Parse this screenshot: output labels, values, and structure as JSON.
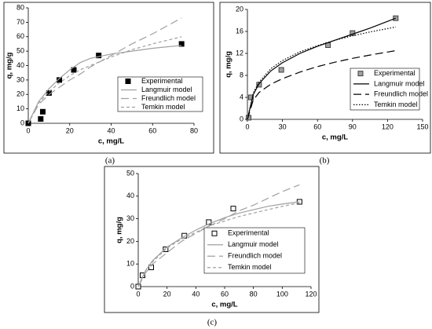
{
  "chart_data": [
    {
      "type": "line",
      "caption": "(a)",
      "x_label": "c, mg/L",
      "y_label": "q, mg/g",
      "xlim": [
        0,
        80
      ],
      "xticks": [
        0,
        20,
        40,
        60,
        80
      ],
      "ylim": [
        0,
        80
      ],
      "yticks": [
        0,
        10,
        20,
        30,
        40,
        50,
        60,
        70,
        80
      ],
      "grid": false,
      "legend": "lower right",
      "series": [
        {
          "name": "Experimental",
          "style": "marker",
          "color": "#000000",
          "marker_fill": "#000000",
          "x": [
            0,
            6,
            7,
            10,
            15,
            22,
            34,
            74
          ],
          "values": [
            0,
            3,
            8,
            21,
            30,
            37,
            47,
            55
          ]
        },
        {
          "name": "Langmuir model",
          "style": "solid",
          "color": "#a0a0a0",
          "x": [
            0,
            5,
            10,
            15,
            20,
            25,
            30,
            40,
            50,
            60,
            74
          ],
          "values": [
            0,
            15,
            24,
            31,
            37,
            42,
            45,
            48,
            50,
            52,
            54
          ]
        },
        {
          "name": "Freundlich model",
          "style": "long-dash",
          "color": "#a0a0a0",
          "x": [
            0,
            5,
            10,
            15,
            20,
            25,
            30,
            40,
            50,
            60,
            74
          ],
          "values": [
            0,
            13,
            20,
            25,
            30,
            34,
            39,
            47,
            55,
            62,
            73
          ]
        },
        {
          "name": "Temkin model",
          "style": "dash",
          "color": "#a0a0a0",
          "x": [
            0,
            5,
            10,
            15,
            20,
            25,
            30,
            40,
            50,
            60,
            74
          ],
          "values": [
            0,
            14,
            22,
            28,
            33,
            37,
            40,
            46,
            51,
            55,
            60
          ]
        }
      ]
    },
    {
      "type": "line",
      "caption": "(b)",
      "x_label": "c, mg/L",
      "y_label": "q, mg/g",
      "xlim": [
        0,
        150
      ],
      "xticks": [
        0,
        30,
        60,
        90,
        120,
        150
      ],
      "ylim": [
        0,
        20
      ],
      "yticks": [
        0,
        4,
        8,
        12,
        16,
        20
      ],
      "grid": false,
      "legend": "lower right",
      "series": [
        {
          "name": "Experimental",
          "style": "marker",
          "color": "#404040",
          "marker_fill": "#a0a0a0",
          "x": [
            1,
            3,
            10,
            29,
            69,
            90,
            127
          ],
          "values": [
            0.3,
            4,
            6.3,
            9,
            13.5,
            15.7,
            18.4
          ]
        },
        {
          "name": "Langmuir model",
          "style": "solid",
          "color": "#000000",
          "x": [
            0,
            5,
            10,
            20,
            30,
            45,
            60,
            75,
            90,
            105,
            127
          ],
          "values": [
            0,
            4.5,
            6.5,
            8.8,
            10.3,
            12,
            13.3,
            14.4,
            15.5,
            16.6,
            18.4
          ]
        },
        {
          "name": "Freundlich model",
          "style": "long-dash",
          "color": "#000000",
          "x": [
            0,
            5,
            10,
            20,
            30,
            45,
            60,
            75,
            90,
            105,
            127
          ],
          "values": [
            0,
            3.5,
            4.9,
            6.4,
            7.4,
            8.6,
            9.6,
            10.4,
            11.1,
            11.7,
            12.5
          ]
        },
        {
          "name": "Temkin model",
          "style": "dot",
          "color": "#000000",
          "x": [
            0,
            5,
            10,
            20,
            30,
            45,
            60,
            75,
            90,
            105,
            127
          ],
          "values": [
            0,
            4.8,
            6.8,
            9.2,
            10.7,
            12.3,
            13.4,
            14.4,
            15.2,
            15.9,
            16.8
          ]
        }
      ]
    },
    {
      "type": "line",
      "caption": "(c)",
      "x_label": "c, mg/L",
      "y_label": "q, mg/g",
      "xlim": [
        0,
        120
      ],
      "xticks": [
        0,
        20,
        40,
        60,
        80,
        100,
        120
      ],
      "ylim": [
        0,
        50
      ],
      "yticks": [
        0,
        10,
        20,
        30,
        40,
        50
      ],
      "grid": false,
      "legend": "lower right",
      "series": [
        {
          "name": "Experimental",
          "style": "marker",
          "color": "#000000",
          "marker_fill": "#ffffff",
          "x": [
            0,
            3,
            9,
            19,
            32,
            49,
            66,
            112
          ],
          "values": [
            0,
            5,
            8.5,
            16.5,
            22.5,
            28.5,
            34.5,
            37.5
          ]
        },
        {
          "name": "Langmuir model",
          "style": "solid",
          "color": "#a0a0a0",
          "x": [
            0,
            5,
            10,
            20,
            30,
            40,
            50,
            60,
            70,
            80,
            90,
            100,
            112
          ],
          "values": [
            0,
            7,
            11.5,
            17.5,
            21.5,
            25,
            28,
            30.5,
            32.5,
            34,
            35.5,
            36.5,
            37.5
          ]
        },
        {
          "name": "Freundlich model",
          "style": "long-dash",
          "color": "#a0a0a0",
          "x": [
            0,
            5,
            10,
            20,
            30,
            40,
            50,
            60,
            70,
            80,
            90,
            100,
            112
          ],
          "values": [
            0,
            6,
            10,
            15,
            20,
            23.5,
            27,
            30,
            33.5,
            36,
            39,
            42,
            45
          ]
        },
        {
          "name": "Temkin model",
          "style": "dash",
          "color": "#a0a0a0",
          "x": [
            0,
            5,
            10,
            20,
            30,
            40,
            50,
            60,
            70,
            80,
            90,
            100,
            112
          ],
          "values": [
            0,
            7,
            11,
            17,
            21,
            24,
            27,
            29,
            31,
            32.5,
            34,
            35.5,
            37
          ]
        }
      ]
    }
  ]
}
